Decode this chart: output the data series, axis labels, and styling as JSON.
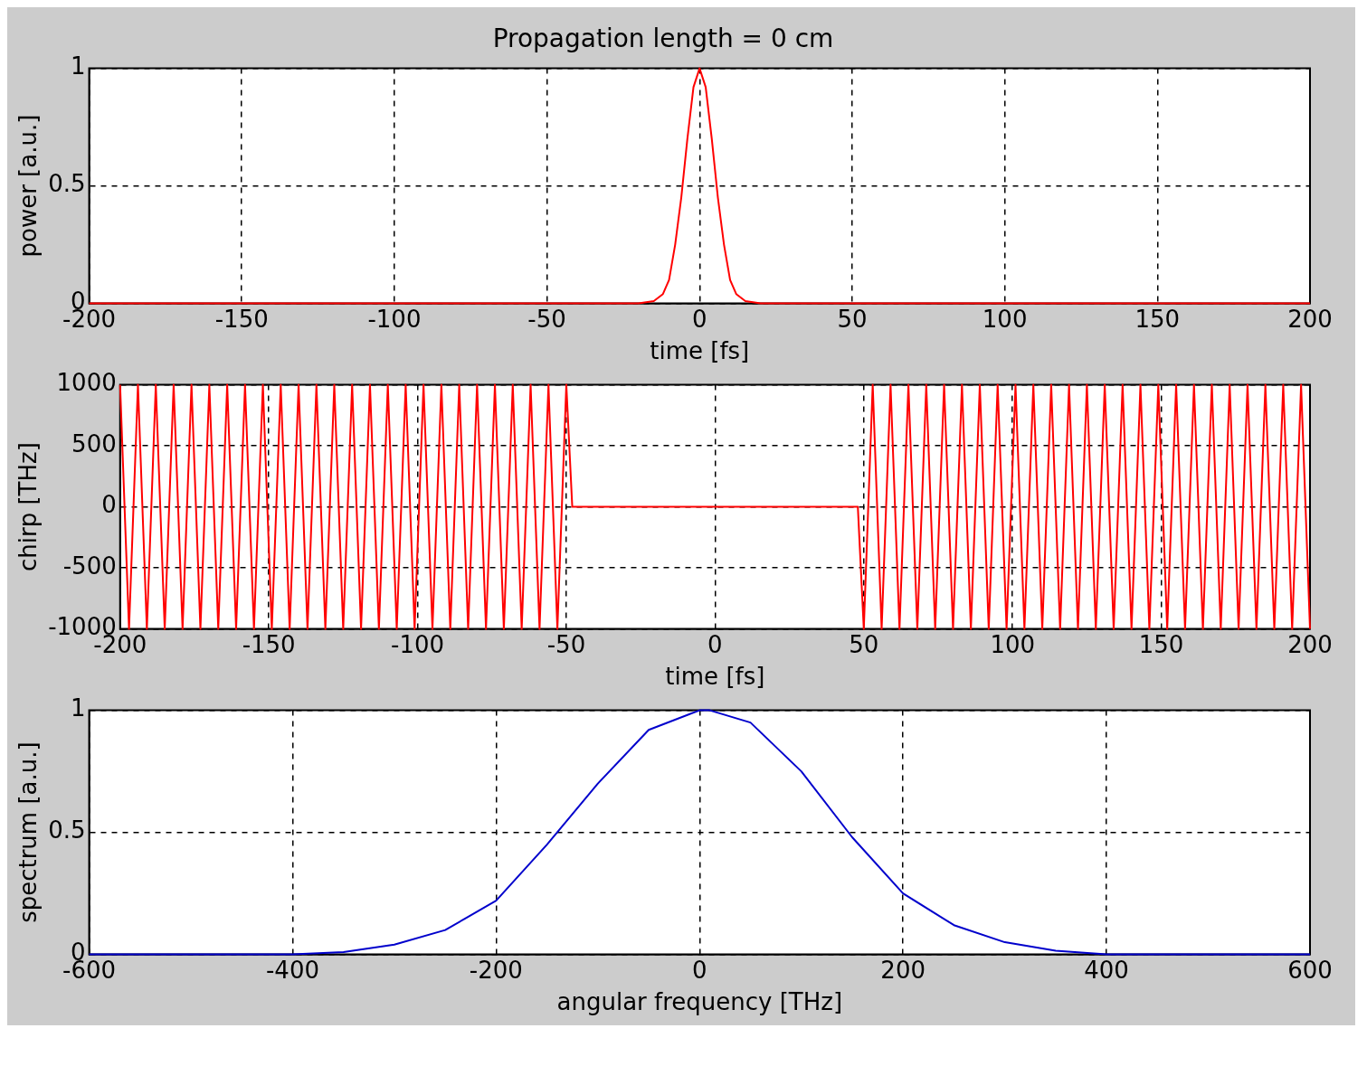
{
  "chart_data": [
    {
      "type": "line",
      "title": "Propagation length = 0 cm",
      "xlabel": "time [fs]",
      "ylabel": "power [a.u.]",
      "x": [
        -200,
        -20,
        -15,
        -12,
        -10,
        -8,
        -6,
        -4,
        -2,
        0,
        2,
        4,
        6,
        8,
        10,
        12,
        15,
        20,
        200
      ],
      "series": [
        {
          "color": "#ff0000",
          "values": [
            0,
            0,
            0.01,
            0.04,
            0.1,
            0.25,
            0.45,
            0.7,
            0.92,
            1,
            0.92,
            0.7,
            0.45,
            0.25,
            0.1,
            0.04,
            0.01,
            0,
            0
          ]
        }
      ],
      "xlim": [
        -200,
        200
      ],
      "ylim": [
        0,
        1
      ],
      "xticks": [
        -200,
        -150,
        -100,
        -50,
        0,
        50,
        100,
        150,
        200
      ],
      "yticks": [
        0,
        0.5,
        1
      ],
      "grid": true
    },
    {
      "type": "line",
      "xlabel": "time [fs]",
      "ylabel": "chirp [THz]",
      "x": [
        -200,
        -197,
        -194,
        -191,
        -188,
        -185,
        -182,
        -179,
        -176,
        -173,
        -170,
        -167,
        -164,
        -161,
        -158,
        -155,
        -152,
        -149,
        -146,
        -143,
        -140,
        -137,
        -134,
        -131,
        -128,
        -125,
        -122,
        -119,
        -116,
        -113,
        -110,
        -107,
        -104,
        -101,
        -98,
        -95,
        -92,
        -89,
        -86,
        -83,
        -80,
        -77,
        -74,
        -71,
        -68,
        -65,
        -62,
        -59,
        -56,
        -53,
        -50,
        -48,
        48,
        50,
        53,
        56,
        59,
        62,
        65,
        68,
        71,
        74,
        77,
        80,
        83,
        86,
        89,
        92,
        95,
        98,
        101,
        104,
        107,
        110,
        113,
        116,
        119,
        122,
        125,
        128,
        131,
        134,
        137,
        140,
        143,
        146,
        149,
        152,
        155,
        158,
        161,
        164,
        167,
        170,
        173,
        176,
        179,
        182,
        185,
        188,
        191,
        194,
        197,
        200
      ],
      "series": [
        {
          "color": "#ff0000",
          "values": [
            1000,
            -1000,
            1000,
            -1000,
            1000,
            -1000,
            1000,
            -1000,
            1000,
            -1000,
            1000,
            -1000,
            1000,
            -1000,
            1000,
            -1000,
            1000,
            -1000,
            1000,
            -1000,
            1000,
            -1000,
            1000,
            -1000,
            1000,
            -1000,
            1000,
            -1000,
            1000,
            -1000,
            1000,
            -1000,
            1000,
            -1000,
            1000,
            -1000,
            1000,
            -1000,
            1000,
            -1000,
            1000,
            -1000,
            1000,
            -1000,
            1000,
            -1000,
            1000,
            -1000,
            1000,
            -1000,
            1000,
            0,
            0,
            -1000,
            1000,
            -1000,
            1000,
            -1000,
            1000,
            -1000,
            1000,
            -1000,
            1000,
            -1000,
            1000,
            -1000,
            1000,
            -1000,
            1000,
            -1000,
            1000,
            -1000,
            1000,
            -1000,
            1000,
            -1000,
            1000,
            -1000,
            1000,
            -1000,
            1000,
            -1000,
            1000,
            -1000,
            1000,
            -1000,
            1000,
            -1000,
            1000,
            -1000,
            1000,
            -1000,
            1000,
            -1000,
            1000,
            -1000,
            1000,
            -1000,
            1000,
            -1000,
            1000,
            -1000,
            1000,
            -1000
          ]
        }
      ],
      "xlim": [
        -200,
        200
      ],
      "ylim": [
        -1000,
        1000
      ],
      "xticks": [
        -200,
        -150,
        -100,
        -50,
        0,
        50,
        100,
        150,
        200
      ],
      "yticks": [
        -1000,
        -500,
        0,
        500,
        1000
      ],
      "grid": true
    },
    {
      "type": "line",
      "xlabel": "angular frequency [THz]",
      "ylabel": "spectrum [a.u.]",
      "x": [
        -600,
        -400,
        -350,
        -300,
        -250,
        -200,
        -150,
        -100,
        -50,
        0,
        10,
        50,
        100,
        150,
        200,
        250,
        300,
        350,
        400,
        600
      ],
      "series": [
        {
          "color": "#0000cc",
          "values": [
            0,
            0,
            0.01,
            0.04,
            0.1,
            0.22,
            0.45,
            0.7,
            0.92,
            1,
            1,
            0.95,
            0.75,
            0.48,
            0.25,
            0.12,
            0.05,
            0.015,
            0,
            0
          ]
        }
      ],
      "xlim": [
        -600,
        600
      ],
      "ylim": [
        0,
        1
      ],
      "xticks": [
        -600,
        -400,
        -200,
        0,
        200,
        400,
        600
      ],
      "yticks": [
        0,
        0.5,
        1
      ],
      "grid": true
    }
  ]
}
